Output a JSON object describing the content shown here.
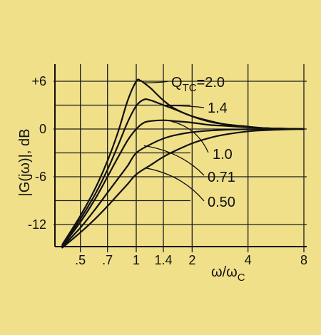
{
  "chart_data": {
    "type": "line",
    "xlabel_main": "ω/ω",
    "xlabel_sub": "C",
    "ylabel": "|G(jω)|, dB",
    "x_scale": "log",
    "xlim": [
      0.33,
      9.5
    ],
    "ylim": [
      -15,
      9
    ],
    "x_ticks": [
      0.5,
      0.7,
      1,
      1.4,
      2,
      4,
      8
    ],
    "x_tick_labels": [
      ".5",
      ".7",
      "1",
      "1.4",
      "2",
      "4",
      "8"
    ],
    "y_ticks": [
      6,
      0,
      -6,
      -12
    ],
    "y_tick_labels": [
      "+6",
      "0",
      "-6",
      "-12"
    ],
    "grid": true,
    "series": [
      {
        "name": "Q = 2.0",
        "x": [
          0.4,
          0.5,
          0.6,
          0.7,
          0.8,
          0.9,
          1.0,
          1.05,
          1.1,
          1.2,
          1.3,
          1.4,
          1.6,
          2.0,
          2.5,
          3,
          4,
          5,
          6,
          8
        ],
        "y": [
          -14.5,
          -10.9,
          -7.5,
          -4.0,
          -0.3,
          3.6,
          6.0,
          6.1,
          5.8,
          5.1,
          4.3,
          3.6,
          2.6,
          1.6,
          0.9,
          0.6,
          0.3,
          0.1,
          0.05,
          0
        ]
      },
      {
        "name": "1.4",
        "x": [
          0.4,
          0.5,
          0.6,
          0.7,
          0.8,
          0.9,
          1.0,
          1.1,
          1.2,
          1.4,
          1.6,
          2.0,
          2.5,
          3,
          4,
          5,
          6,
          8
        ],
        "y": [
          -14.6,
          -11.3,
          -8.2,
          -5.1,
          -2.0,
          0.9,
          2.9,
          3.7,
          3.6,
          3.0,
          2.5,
          1.6,
          1.0,
          0.6,
          0.3,
          0.1,
          0.05,
          0
        ]
      },
      {
        "name": "1.0",
        "x": [
          0.4,
          0.5,
          0.6,
          0.7,
          0.8,
          0.9,
          1.0,
          1.1,
          1.2,
          1.4,
          1.6,
          2.0,
          2.5,
          3,
          4,
          5,
          6,
          8
        ],
        "y": [
          -14.7,
          -11.7,
          -8.8,
          -6.0,
          -3.5,
          -1.4,
          0.0,
          0.8,
          1.0,
          1.1,
          1.0,
          0.8,
          0.5,
          0.4,
          0.2,
          0.1,
          0.05,
          0
        ]
      },
      {
        "name": "0.71",
        "x": [
          0.4,
          0.5,
          0.6,
          0.7,
          0.8,
          0.9,
          1.0,
          1.2,
          1.4,
          1.6,
          2.0,
          2.5,
          3,
          4,
          5,
          6,
          8
        ],
        "y": [
          -14.8,
          -12.4,
          -10.1,
          -8.0,
          -6.2,
          -4.6,
          -3.0,
          -1.9,
          -1.2,
          -0.8,
          -0.4,
          -0.2,
          -0.1,
          -0.04,
          -0.02,
          -0.01,
          0
        ]
      },
      {
        "name": "0.50",
        "x": [
          0.4,
          0.5,
          0.6,
          0.7,
          0.8,
          0.9,
          1.0,
          1.2,
          1.4,
          1.6,
          2.0,
          2.5,
          3,
          4,
          5,
          6,
          8
        ],
        "y": [
          -14.9,
          -13.0,
          -11.3,
          -9.7,
          -8.2,
          -6.9,
          -5.7,
          -4.5,
          -3.5,
          -2.8,
          -1.8,
          -1.1,
          -0.7,
          -0.3,
          -0.15,
          -0.08,
          0
        ]
      }
    ],
    "annotations": {
      "q_prefix_main": "Q",
      "q_prefix_sub": "TC",
      "q_prefix_eq": "=",
      "labels": [
        "2.0",
        "1.4",
        "1.0",
        "0.71",
        "0.50"
      ]
    }
  },
  "colors": {
    "background": "#f1e08a",
    "ink": "#111111"
  }
}
